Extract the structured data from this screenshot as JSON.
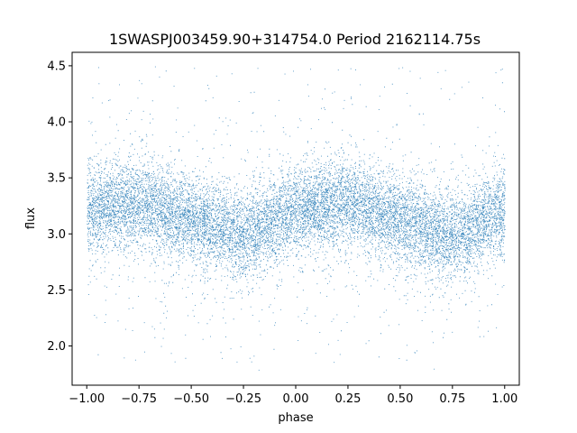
{
  "chart_data": {
    "type": "scatter",
    "title": "1SWASPJ003459.90+314754.0 Period 2162114.75s",
    "xlabel": "phase",
    "ylabel": "flux",
    "xlim": [
      -1.07,
      1.07
    ],
    "ylim": [
      1.65,
      4.62
    ],
    "xticks": [
      -1.0,
      -0.75,
      -0.5,
      -0.25,
      0.0,
      0.25,
      0.5,
      0.75,
      1.0
    ],
    "xtick_labels": [
      "−1.00",
      "−0.75",
      "−0.50",
      "−0.25",
      "0.00",
      "0.25",
      "0.50",
      "0.75",
      "1.00"
    ],
    "yticks": [
      2.0,
      2.5,
      3.0,
      3.5,
      4.0,
      4.5
    ],
    "ytick_labels": [
      "2.0",
      "2.5",
      "3.0",
      "3.5",
      "4.0",
      "4.5"
    ],
    "grid": false,
    "point_color": "#1f77b4",
    "x_range": [
      -1.0,
      1.0
    ],
    "y_range": [
      1.78,
      4.5
    ],
    "trend_phase": [
      -1.0,
      -0.75,
      -0.5,
      -0.25,
      0.0,
      0.25,
      0.5,
      0.75,
      1.0
    ],
    "trend_flux": [
      3.22,
      3.28,
      3.12,
      2.98,
      3.22,
      3.28,
      3.12,
      2.98,
      3.22
    ]
  }
}
